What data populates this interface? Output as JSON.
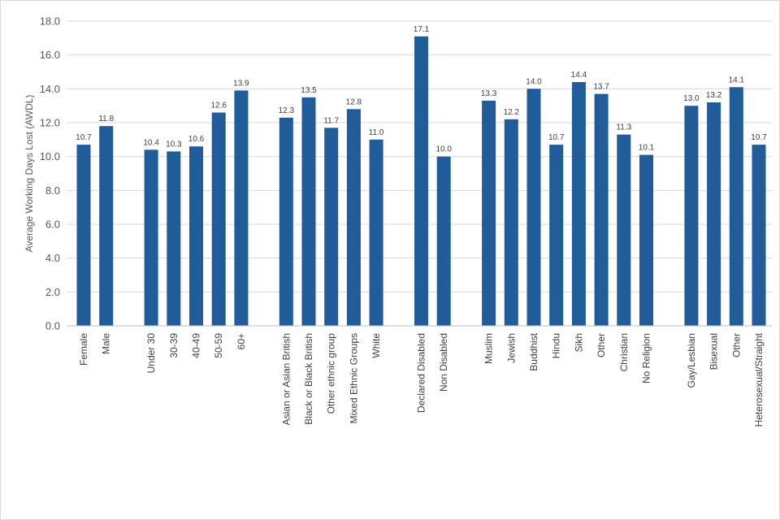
{
  "chart_data": {
    "type": "bar",
    "title": "",
    "xlabel": "",
    "ylabel": "Average Working Days Lost (AWDL)",
    "ylim": [
      0,
      18
    ],
    "ytick_step": 2,
    "ytick_labels": [
      "0.0",
      "2.0",
      "4.0",
      "6.0",
      "8.0",
      "10.0",
      "12.0",
      "14.0",
      "16.0",
      "18.0"
    ],
    "grid": true,
    "legend": "none",
    "bar_color": "#1f5c99",
    "grid_color": "#d9d9d9",
    "groups": [
      {
        "categories": [
          "Female",
          "Male"
        ],
        "values": [
          10.7,
          11.8
        ],
        "labels": [
          "10.7",
          "11.8"
        ]
      },
      {
        "categories": [
          "Under 30",
          "30-39",
          "40-49",
          "50-59",
          "60+"
        ],
        "values": [
          10.4,
          10.3,
          10.6,
          12.6,
          13.9
        ],
        "labels": [
          "10.4",
          "10.3",
          "10.6",
          "12.6",
          "13.9"
        ]
      },
      {
        "categories": [
          "Asian or Asian British",
          "Black or Black British",
          "Other ethnic group",
          "Mixed Ethnic Groups",
          "White"
        ],
        "values": [
          12.3,
          13.5,
          11.7,
          12.8,
          11.0
        ],
        "labels": [
          "12.3",
          "13.5",
          "11.7",
          "12.8",
          "11.0"
        ]
      },
      {
        "categories": [
          "Declared Disabled",
          "Non Disabled"
        ],
        "values": [
          17.1,
          10.0
        ],
        "labels": [
          "17.1",
          "10.0"
        ]
      },
      {
        "categories": [
          "Muslim",
          "Jewish",
          "Buddhist",
          "Hindu",
          "Sikh",
          "Other",
          "Christian",
          "No Religion"
        ],
        "values": [
          13.3,
          12.2,
          14.0,
          10.7,
          14.4,
          13.7,
          11.3,
          10.1
        ],
        "labels": [
          "13.3",
          "12.2",
          "14.0",
          "10.7",
          "14.4",
          "13.7",
          "11.3",
          "10.1"
        ]
      },
      {
        "categories": [
          "Gay/Lesbian",
          "Bisexual",
          "Other",
          "Heterosexual/Straight"
        ],
        "values": [
          13.0,
          13.2,
          14.1,
          10.7
        ],
        "labels": [
          "13.0",
          "13.2",
          "14.1",
          "10.7"
        ]
      }
    ]
  }
}
